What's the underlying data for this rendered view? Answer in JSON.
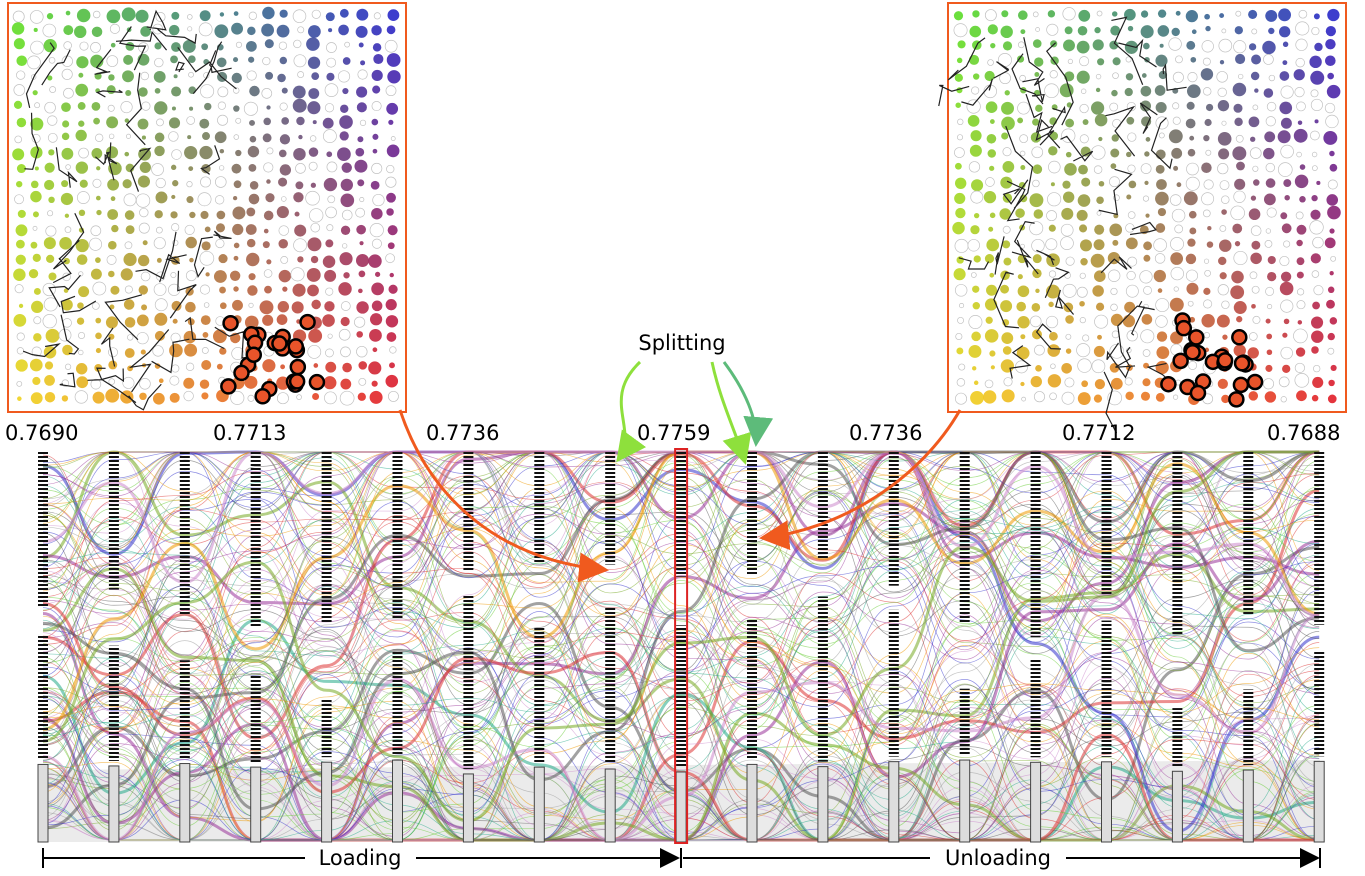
{
  "annotation": "Splitting",
  "column_labels": [
    "0.7690",
    "0.7713",
    "0.7736",
    "0.7759",
    "0.7736",
    "0.7712",
    "0.7688"
  ],
  "phases": {
    "loading": "Loading",
    "unloading": "Unloading"
  }
}
